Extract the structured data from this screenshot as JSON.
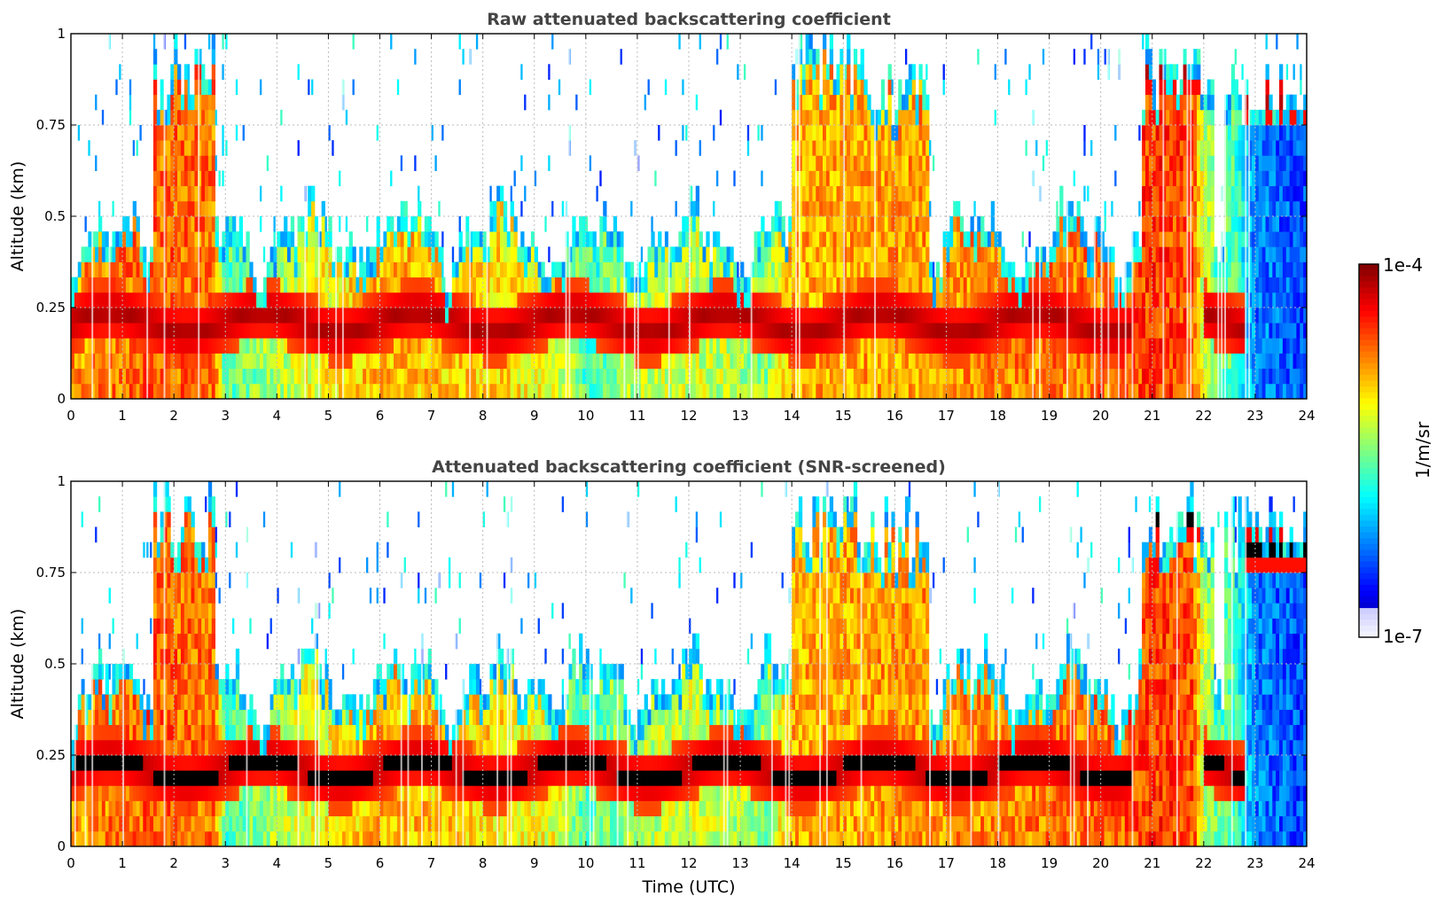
{
  "chart_data": [
    {
      "type": "heatmap",
      "title": "Raw attenuated backscattering coefficient",
      "xlabel": "",
      "ylabel": "Altitude (km)",
      "xlim": [
        0,
        24
      ],
      "ylim": [
        0,
        1
      ],
      "x_ticks": [
        "0",
        "1",
        "2",
        "3",
        "4",
        "5",
        "6",
        "7",
        "8",
        "9",
        "10",
        "11",
        "12",
        "13",
        "14",
        "15",
        "16",
        "17",
        "18",
        "19",
        "20",
        "21",
        "22",
        "23",
        "24"
      ],
      "y_ticks": [
        "0",
        "0.25",
        "0.5",
        "0.75",
        "1"
      ],
      "grid": true,
      "screened": false,
      "log_scale_colors": true,
      "colormap": "jet"
    },
    {
      "type": "heatmap",
      "title": "Attenuated backscattering coefficient (SNR-screened)",
      "xlabel": "Time (UTC)",
      "ylabel": "Altitude (km)",
      "xlim": [
        0,
        24
      ],
      "ylim": [
        0,
        1
      ],
      "x_ticks": [
        "0",
        "1",
        "2",
        "3",
        "4",
        "5",
        "6",
        "7",
        "8",
        "9",
        "10",
        "11",
        "12",
        "13",
        "14",
        "15",
        "16",
        "17",
        "18",
        "19",
        "20",
        "21",
        "22",
        "23",
        "24"
      ],
      "y_ticks": [
        "0",
        "0.25",
        "0.5",
        "0.75",
        "1"
      ],
      "grid": true,
      "screened": true,
      "log_scale_colors": true,
      "colormap": "jet"
    }
  ],
  "colorbar": {
    "label": "1/m/sr",
    "max_label": "1e-4",
    "min_label": "1e-7",
    "min_value": 1e-07,
    "max_value": 0.0001,
    "scale": "log"
  },
  "colors": {
    "title": "#444444",
    "saturated": "#7f0000",
    "screened_core": "#000000"
  }
}
